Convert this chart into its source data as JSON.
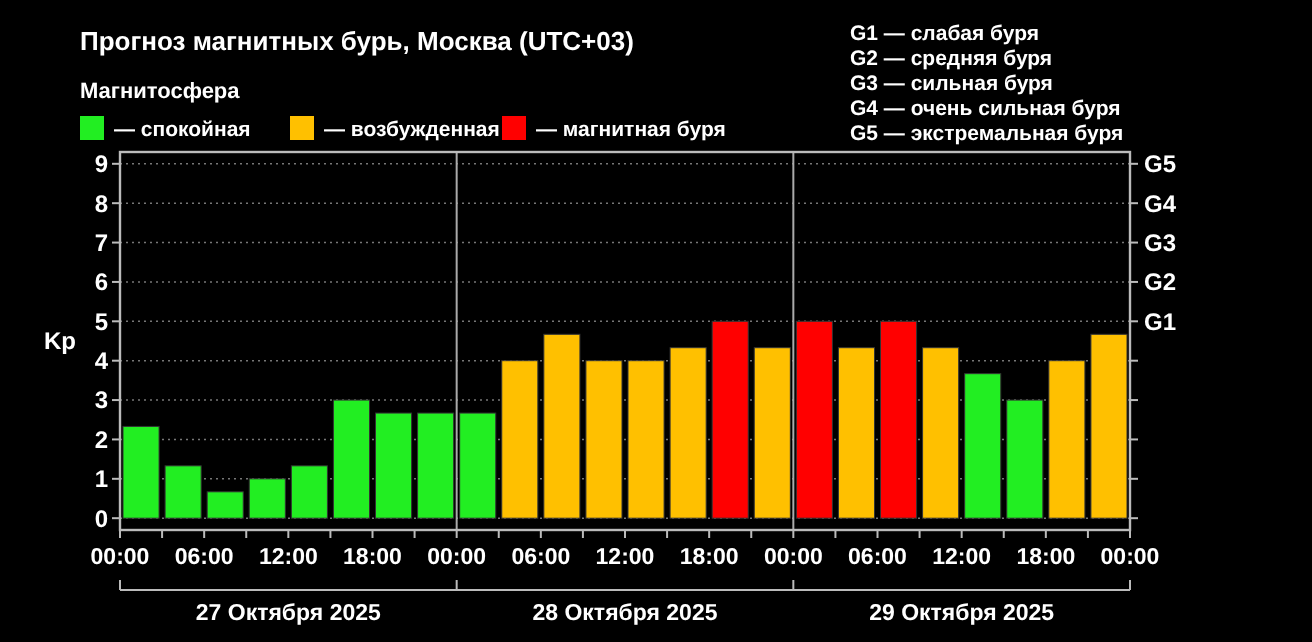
{
  "chart_data": {
    "type": "bar",
    "title": "Прогноз магнитных бурь, Москва (UTC+03)",
    "ylabel": "Kp",
    "legend_title": "Магнитосфера",
    "legend": "top left",
    "grid": "y",
    "x": [
      "2025-10-27T01:30",
      "2025-10-27T04:30",
      "2025-10-27T07:30",
      "2025-10-27T10:30",
      "2025-10-27T13:30",
      "2025-10-27T16:30",
      "2025-10-27T19:30",
      "2025-10-27T22:30",
      "2025-10-28T01:30",
      "2025-10-28T04:30",
      "2025-10-28T07:30",
      "2025-10-28T10:30",
      "2025-10-28T13:30",
      "2025-10-28T16:30",
      "2025-10-28T19:30",
      "2025-10-28T22:30",
      "2025-10-29T01:30",
      "2025-10-29T04:30",
      "2025-10-29T07:30",
      "2025-10-29T10:30",
      "2025-10-29T13:30",
      "2025-10-29T16:30",
      "2025-10-29T19:30",
      "2025-10-29T22:30"
    ],
    "series": [
      {
        "name": "— спокойная",
        "color": "#22ee22",
        "values": [
          2.33,
          1.33,
          0.67,
          1,
          1.33,
          3,
          2.67,
          2.67,
          2.67,
          null,
          null,
          null,
          null,
          null,
          null,
          null,
          null,
          null,
          null,
          null,
          3.67,
          3,
          null,
          null
        ]
      },
      {
        "name": "— возбужденная",
        "color": "#ffc000",
        "values": [
          null,
          null,
          null,
          null,
          null,
          null,
          null,
          null,
          null,
          4,
          4.67,
          4,
          4,
          4.33,
          null,
          4.33,
          null,
          4.33,
          null,
          4.33,
          null,
          null,
          4,
          4.67
        ]
      },
      {
        "name": "— магнитная буря",
        "color": "#ff0000",
        "values": [
          null,
          null,
          null,
          null,
          null,
          null,
          null,
          null,
          null,
          null,
          null,
          null,
          null,
          null,
          5,
          null,
          5,
          null,
          5,
          null,
          null,
          null,
          null,
          null
        ]
      }
    ],
    "xlim": [
      "2025-10-27T00:00",
      "2025-10-30T00:00"
    ],
    "xticks": [
      {
        "value": "2025-10-27T00:00",
        "label": "00:00"
      },
      {
        "value": "2025-10-27T03:00",
        "label": null
      },
      {
        "value": "2025-10-27T06:00",
        "label": "06:00"
      },
      {
        "value": "2025-10-27T09:00",
        "label": null
      },
      {
        "value": "2025-10-27T12:00",
        "label": "12:00"
      },
      {
        "value": "2025-10-27T15:00",
        "label": null
      },
      {
        "value": "2025-10-27T18:00",
        "label": "18:00"
      },
      {
        "value": "2025-10-27T21:00",
        "label": null
      },
      {
        "value": "2025-10-28T00:00",
        "label": "00:00"
      },
      {
        "value": "2025-10-28T03:00",
        "label": null
      },
      {
        "value": "2025-10-28T06:00",
        "label": "06:00"
      },
      {
        "value": "2025-10-28T09:00",
        "label": null
      },
      {
        "value": "2025-10-28T12:00",
        "label": "12:00"
      },
      {
        "value": "2025-10-28T15:00",
        "label": null
      },
      {
        "value": "2025-10-28T18:00",
        "label": "18:00"
      },
      {
        "value": "2025-10-28T21:00",
        "label": null
      },
      {
        "value": "2025-10-29T00:00",
        "label": "00:00"
      },
      {
        "value": "2025-10-29T03:00",
        "label": null
      },
      {
        "value": "2025-10-29T06:00",
        "label": "06:00"
      },
      {
        "value": "2025-10-29T09:00",
        "label": null
      },
      {
        "value": "2025-10-29T12:00",
        "label": "12:00"
      },
      {
        "value": "2025-10-29T15:00",
        "label": null
      },
      {
        "value": "2025-10-29T18:00",
        "label": "18:00"
      },
      {
        "value": "2025-10-29T21:00",
        "label": null
      },
      {
        "value": "2025-10-30T00:00",
        "label": "00:00"
      }
    ],
    "ylim": [
      -0.3,
      9.3
    ],
    "yticks": [
      0,
      1,
      2,
      3,
      4,
      5,
      6,
      7,
      8,
      9
    ],
    "y2_categories": [
      "G5",
      "G4",
      "G3",
      "G2",
      "G1",
      null,
      null,
      null,
      null,
      null
    ],
    "ref_lines": [
      {
        "axis": "x",
        "value": "2025-10-28T00:00",
        "color": "#aaaaaa"
      },
      {
        "axis": "x",
        "value": "2025-10-29T00:00",
        "color": "#aaaaaa"
      }
    ],
    "annotations": [
      "G1 — слабая буря",
      "G2 — средняя буря",
      "G3 — сильная буря",
      "G4 — очень сильная буря",
      "G5 — экстремальная буря",
      "27 Октября 2025",
      "28 Октября 2025",
      "29 Октября 2025"
    ]
  }
}
